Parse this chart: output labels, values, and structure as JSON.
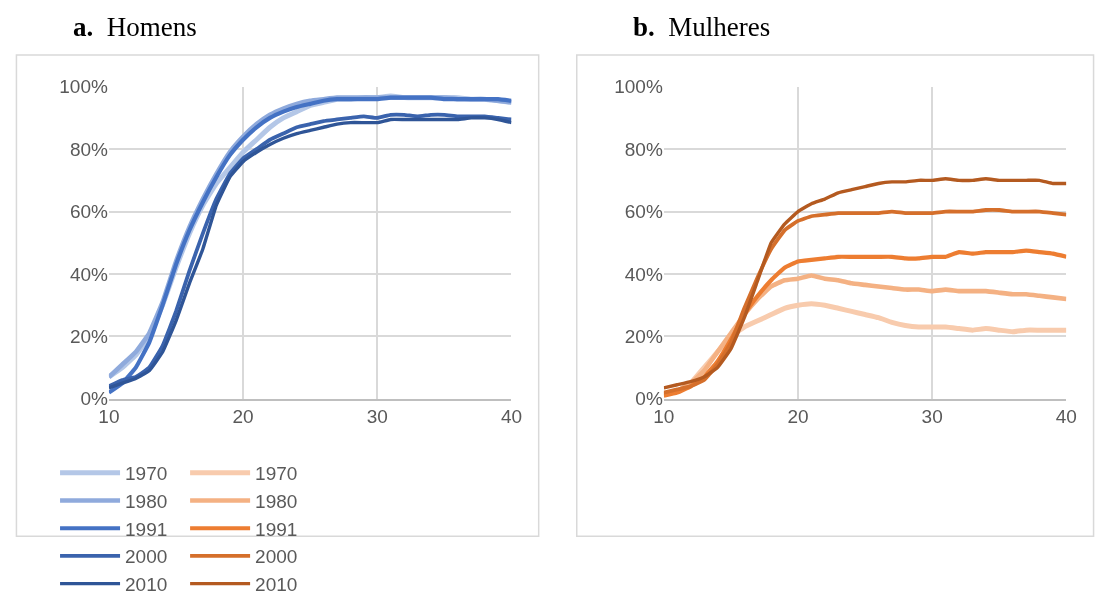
{
  "chart_data": [
    {
      "type": "line",
      "title": "a. Homens",
      "x": [
        10,
        11,
        12,
        13,
        14,
        15,
        16,
        17,
        18,
        19,
        20,
        21,
        22,
        23,
        24,
        25,
        26,
        27,
        28,
        29,
        30,
        31,
        32,
        33,
        34,
        35,
        36,
        37,
        38,
        39,
        40
      ],
      "xlim": [
        10,
        40
      ],
      "xticks": [
        10,
        20,
        30,
        40
      ],
      "ylim": [
        0,
        100
      ],
      "yticks": [
        {
          "value": 0,
          "label": "0%"
        },
        {
          "value": 20,
          "label": "20%"
        },
        {
          "value": 40,
          "label": "40%"
        },
        {
          "value": 60,
          "label": "60%"
        },
        {
          "value": 80,
          "label": "80%"
        },
        {
          "value": 100,
          "label": "100%"
        }
      ],
      "grid": true,
      "legend": "bottom",
      "series": [
        {
          "name": "1970",
          "color": "#b4c7e7",
          "values": [
            7,
            10,
            14,
            20,
            30,
            42,
            53,
            62,
            69,
            74,
            79,
            83,
            87,
            90,
            92,
            94,
            95,
            96,
            96,
            96.5,
            96.5,
            97,
            96.5,
            96.5,
            96.5,
            96.5,
            96.5,
            96,
            96,
            95.5,
            95
          ]
        },
        {
          "name": "1980",
          "color": "#8faadc",
          "values": [
            7,
            11,
            15,
            21,
            31,
            44,
            55,
            64,
            72,
            79,
            84,
            88,
            91,
            93,
            94.5,
            95.5,
            96,
            96.5,
            96.5,
            96.5,
            96.5,
            96.5,
            96.5,
            96.5,
            96.5,
            96.5,
            96,
            96,
            96,
            95.5,
            95
          ]
        },
        {
          "name": "1991",
          "color": "#4472c4",
          "values": [
            2,
            5,
            10,
            18,
            30,
            43,
            54,
            63,
            71,
            78,
            83,
            87,
            90,
            92,
            93.5,
            94.5,
            95.5,
            96,
            96,
            96,
            96,
            96.5,
            96.5,
            96.5,
            96.5,
            96,
            96,
            96,
            96,
            96,
            95.5
          ]
        },
        {
          "name": "2000",
          "color": "#3a63ad",
          "values": [
            4,
            6,
            7,
            10,
            17,
            28,
            41,
            53,
            64,
            72,
            77,
            80,
            83,
            85,
            87,
            88,
            89,
            89.5,
            90,
            90.5,
            90,
            91,
            91,
            90.5,
            91,
            91,
            90.5,
            90.5,
            90.5,
            90,
            89.5
          ]
        },
        {
          "name": "2010",
          "color": "#2f5597",
          "values": [
            3.5,
            5,
            6.5,
            9,
            15,
            25,
            37,
            48,
            62,
            71,
            76,
            79,
            81.5,
            83.5,
            85,
            86,
            87,
            88,
            88.5,
            88.5,
            88.5,
            89.5,
            89.5,
            89.5,
            89.5,
            89.5,
            89.5,
            90,
            90,
            89.5,
            88.5
          ]
        }
      ]
    },
    {
      "type": "line",
      "title": "b. Mulheres",
      "x": [
        10,
        11,
        12,
        13,
        14,
        15,
        16,
        17,
        18,
        19,
        20,
        21,
        22,
        23,
        24,
        25,
        26,
        27,
        28,
        29,
        30,
        31,
        32,
        33,
        34,
        35,
        36,
        37,
        38,
        39,
        40
      ],
      "xlim": [
        10,
        40
      ],
      "xticks": [
        10,
        20,
        30,
        40
      ],
      "ylim": [
        0,
        100
      ],
      "yticks": [
        {
          "value": 0,
          "label": "0%"
        },
        {
          "value": 20,
          "label": "20%"
        },
        {
          "value": 40,
          "label": "40%"
        },
        {
          "value": 60,
          "label": "60%"
        },
        {
          "value": 80,
          "label": "80%"
        },
        {
          "value": 100,
          "label": "100%"
        }
      ],
      "grid": true,
      "legend": "bottom",
      "series": [
        {
          "name": "1970",
          "color": "#f8cbad",
          "values": [
            1.5,
            2.5,
            5,
            10,
            15,
            20,
            23,
            25,
            27,
            29,
            30,
            30.5,
            30,
            29,
            28,
            27,
            26,
            24.5,
            23.5,
            23,
            23,
            23,
            22.5,
            22,
            22.5,
            22,
            21.5,
            22,
            22,
            22,
            22
          ]
        },
        {
          "name": "1980",
          "color": "#f4b183",
          "values": [
            1.5,
            2.5,
            5,
            9,
            15,
            21,
            27,
            32,
            36,
            38,
            38.5,
            39.5,
            38.5,
            38,
            37,
            36.5,
            36,
            35.5,
            35,
            35,
            34.5,
            35,
            34.5,
            34.5,
            34.5,
            34,
            33.5,
            33.5,
            33,
            32.5,
            32
          ]
        },
        {
          "name": "1991",
          "color": "#ed7d31",
          "values": [
            1,
            2,
            4,
            7,
            12,
            19,
            27,
            33,
            38,
            42,
            44,
            44.5,
            45,
            45.5,
            45.5,
            45.5,
            45.5,
            45.5,
            45,
            45,
            45.5,
            45.5,
            47,
            46.5,
            47,
            47,
            47,
            47.5,
            47,
            46.5,
            45.5
          ]
        },
        {
          "name": "2000",
          "color": "#d56f2b",
          "values": [
            2,
            3,
            4,
            6,
            11,
            18,
            29,
            39,
            48,
            54,
            57,
            58.5,
            59,
            59.5,
            59.5,
            59.5,
            59.5,
            60,
            59.5,
            59.5,
            59.5,
            60,
            60,
            60,
            60.5,
            60.5,
            60,
            60,
            60,
            59.5,
            59
          ]
        },
        {
          "name": "2010",
          "color": "#b45a20",
          "values": [
            3.5,
            4.5,
            5.5,
            7,
            10,
            16,
            26,
            38,
            50,
            56,
            60,
            62.5,
            64,
            66,
            67,
            68,
            69,
            69.5,
            69.5,
            70,
            70,
            70.5,
            70,
            70,
            70.5,
            70,
            70,
            70,
            70,
            69,
            69
          ]
        }
      ]
    }
  ]
}
